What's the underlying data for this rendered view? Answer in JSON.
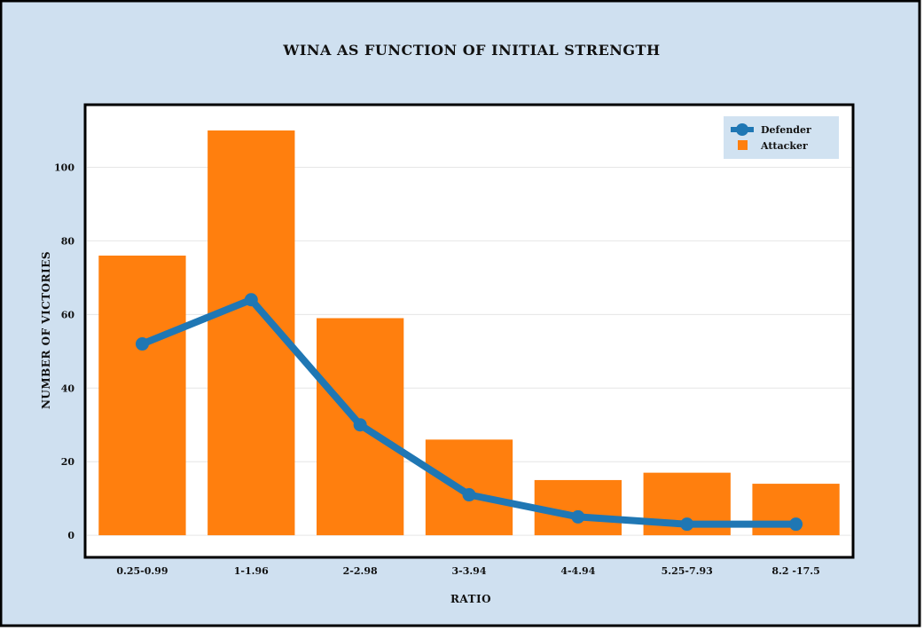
{
  "chart_data": {
    "type": "bar",
    "title": "WINA AS FUNCTION OF INITIAL STRENGTH",
    "xlabel": "RATIO",
    "ylabel": "NUMBER OF VICTORIES",
    "categories": [
      "0.25-0.99",
      "1-1.96",
      "2-2.98",
      "3-3.94",
      "4-4.94",
      "5.25-7.93",
      "8.2 -17.5"
    ],
    "series": [
      {
        "name": "Attacker",
        "type": "bar",
        "color": "#ff7f0e",
        "values": [
          76,
          110,
          59,
          26,
          15,
          17,
          14
        ]
      },
      {
        "name": "Defender",
        "type": "line",
        "color": "#1f77b4",
        "values": [
          52,
          64,
          30,
          11,
          5,
          3,
          3
        ]
      }
    ],
    "ylim": [
      -6,
      117
    ],
    "yticks": [
      0,
      20,
      40,
      60,
      80,
      100
    ],
    "grid": "horizontal",
    "legend_position": "top-right",
    "colors": {
      "figure_background": "#cfe0f0",
      "plot_background": "#ffffff",
      "border": "#000000"
    }
  }
}
